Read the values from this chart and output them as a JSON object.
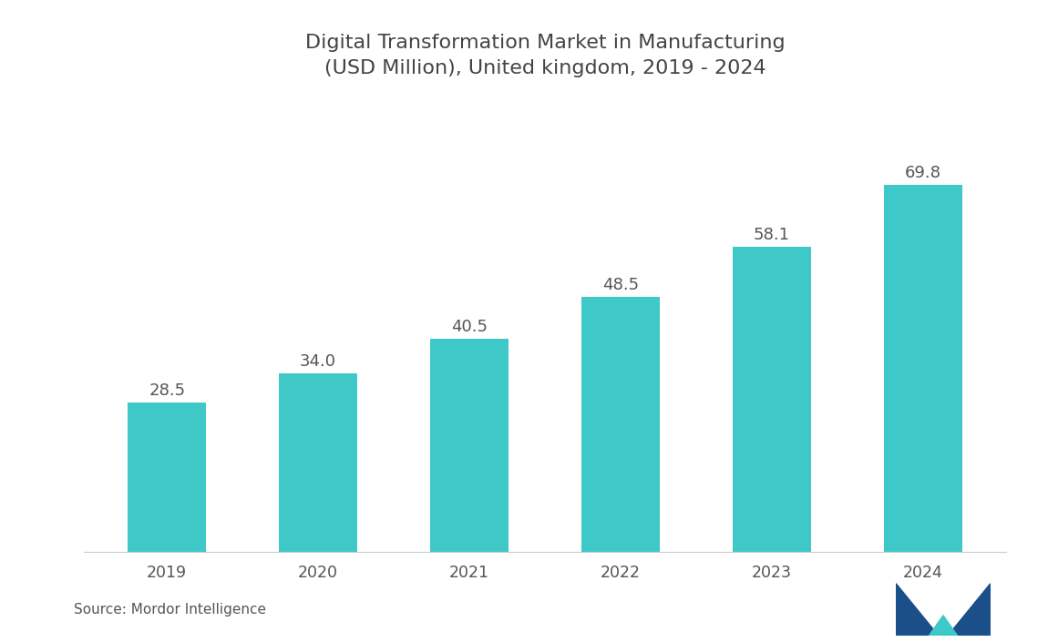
{
  "title": "Digital Transformation Market in Manufacturing\n(USD Million), United kingdom, 2019 - 2024",
  "categories": [
    "2019",
    "2020",
    "2021",
    "2022",
    "2023",
    "2024"
  ],
  "values": [
    28.5,
    34.0,
    40.5,
    48.5,
    58.1,
    69.8
  ],
  "bar_color": "#3EC8C8",
  "background_color": "#FFFFFF",
  "label_color": "#555555",
  "title_color": "#444444",
  "source_text": "Source: Mordor Intelligence",
  "title_fontsize": 16,
  "label_fontsize": 13,
  "tick_fontsize": 12.5,
  "source_fontsize": 11,
  "ylim": [
    0,
    83
  ],
  "bar_width": 0.52
}
